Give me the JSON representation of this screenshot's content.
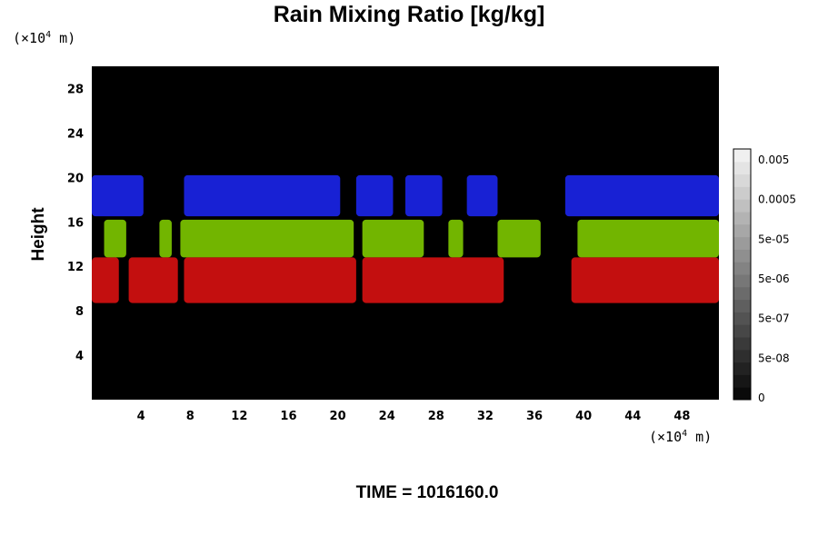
{
  "chart_data": {
    "type": "heatmap",
    "title": "Rain Mixing Ratio [kg/kg]",
    "ylabel": "Height",
    "x_unit": {
      "prefix": "(×10",
      "exp": "4",
      "suffix": " m)"
    },
    "y_unit": {
      "prefix": "(×10",
      "exp": "4",
      "suffix": " m)"
    },
    "footer": "TIME = 1016160.0",
    "xlim": [
      0,
      51
    ],
    "ylim": [
      0,
      30
    ],
    "x_ticks": [
      4,
      8,
      12,
      16,
      20,
      24,
      28,
      32,
      36,
      40,
      44,
      48
    ],
    "y_ticks": [
      4,
      8,
      12,
      16,
      20,
      24,
      28
    ],
    "colorbar": {
      "tick_labels": [
        "0",
        "5e-08",
        "5e-07",
        "5e-06",
        "5e-05",
        "0.0005",
        "0.005"
      ],
      "levels": 20
    },
    "layers": [
      {
        "color": "#1a24e6",
        "y_range": [
          16.5,
          20.2
        ],
        "segments": [
          [
            0,
            4.2
          ],
          [
            7.5,
            20.2
          ],
          [
            21.5,
            24.5
          ],
          [
            25.5,
            28.5
          ],
          [
            30.5,
            33
          ],
          [
            38.5,
            51
          ]
        ]
      },
      {
        "color": "#7cc400",
        "y_range": [
          12.8,
          16.2
        ],
        "segments": [
          [
            1,
            2.8
          ],
          [
            5.5,
            6.5
          ],
          [
            7.2,
            21.3
          ],
          [
            22,
            27
          ],
          [
            29,
            30.2
          ],
          [
            33,
            36.5
          ],
          [
            39.5,
            51
          ]
        ]
      },
      {
        "color": "#d41010",
        "y_range": [
          8.7,
          12.8
        ],
        "segments": [
          [
            0,
            2.2
          ],
          [
            3,
            7
          ],
          [
            7.5,
            21.5
          ],
          [
            22,
            33.5
          ],
          [
            39,
            51
          ]
        ]
      }
    ]
  }
}
